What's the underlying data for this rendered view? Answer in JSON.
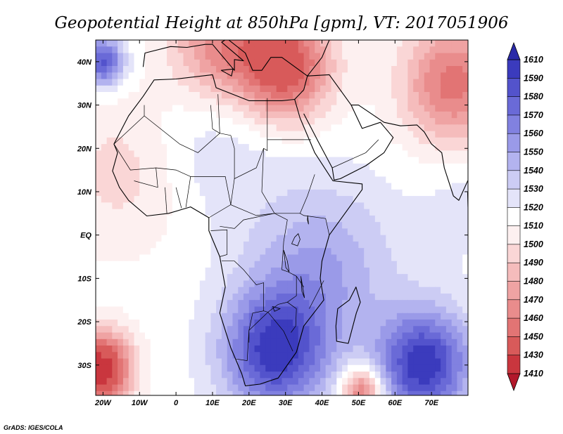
{
  "chart_data": {
    "type": "heatmap",
    "title": "Geopotential Height at 850hPa [gpm], VT: 2017051906",
    "x_axis": {
      "ticks": [
        -20,
        -10,
        0,
        10,
        20,
        30,
        40,
        50,
        60,
        70
      ],
      "tick_labels": [
        "20W",
        "10W",
        "0",
        "10E",
        "20E",
        "30E",
        "40E",
        "50E",
        "60E",
        "70E"
      ],
      "range": [
        -22,
        80
      ]
    },
    "y_axis": {
      "ticks": [
        40,
        30,
        20,
        10,
        0,
        -10,
        -20,
        -30
      ],
      "tick_labels": [
        "40N",
        "30N",
        "20N",
        "10N",
        "EQ",
        "10S",
        "20S",
        "30S"
      ],
      "range": [
        -37,
        45
      ]
    },
    "colorbar": {
      "levels": [
        1410,
        1430,
        1450,
        1460,
        1470,
        1480,
        1490,
        1500,
        1510,
        1520,
        1530,
        1540,
        1550,
        1560,
        1570,
        1580,
        1590,
        1610
      ],
      "colors": [
        "#b2182b",
        "#c9363e",
        "#d85a5a",
        "#e27474",
        "#e98c8c",
        "#efa3a3",
        "#f5bcbc",
        "#fad6d6",
        "#fdf0f0",
        "#ffffff",
        "#e4e4f9",
        "#ccccf4",
        "#b3b3ef",
        "#9a9ae8",
        "#8181e0",
        "#6a6ad7",
        "#5353cc",
        "#3b3bbd",
        "#2a2aa8"
      ]
    },
    "field_centers": [
      {
        "lon": 30,
        "lat": 39,
        "value": 1440,
        "spread": 9
      },
      {
        "lon": 76,
        "lat": 35,
        "value": 1455,
        "spread": 10
      },
      {
        "lon": 12,
        "lat": 44,
        "value": 1465,
        "spread": 10
      },
      {
        "lon": -21,
        "lat": -31,
        "value": 1415,
        "spread": 6
      },
      {
        "lon": -14,
        "lat": 15,
        "value": 1495,
        "spread": 13
      },
      {
        "lon": 51,
        "lat": -36,
        "value": 1448,
        "spread": 4
      },
      {
        "lon": -20,
        "lat": 40,
        "value": 1585,
        "spread": 4
      },
      {
        "lon": 27,
        "lat": -27,
        "value": 1592,
        "spread": 10
      },
      {
        "lon": 68,
        "lat": -30,
        "value": 1598,
        "spread": 9
      },
      {
        "lon": 40,
        "lat": -8,
        "value": 1550,
        "spread": 14
      },
      {
        "lon": 10,
        "lat": 22,
        "value": 1530,
        "spread": 13
      },
      {
        "lon": 80,
        "lat": 8,
        "value": 1525,
        "spread": 9
      }
    ],
    "field_base": 1515,
    "outline": {
      "africa": [
        [
          -17,
          21
        ],
        [
          -13,
          27.5
        ],
        [
          -9,
          32
        ],
        [
          -6,
          35.8
        ],
        [
          0,
          36
        ],
        [
          10,
          37
        ],
        [
          11,
          34
        ],
        [
          20,
          31
        ],
        [
          29,
          31
        ],
        [
          32.5,
          31.3
        ],
        [
          34,
          27
        ],
        [
          38,
          19
        ],
        [
          43,
          12.5
        ],
        [
          51,
          11.8
        ],
        [
          51,
          10.5
        ],
        [
          42,
          0
        ],
        [
          40,
          -6
        ],
        [
          39.5,
          -10
        ],
        [
          40.5,
          -15
        ],
        [
          35,
          -21
        ],
        [
          33,
          -27
        ],
        [
          28,
          -33
        ],
        [
          23,
          -34.4
        ],
        [
          19,
          -34.8
        ],
        [
          18,
          -32
        ],
        [
          15,
          -26
        ],
        [
          12,
          -18
        ],
        [
          13.5,
          -12
        ],
        [
          12,
          -5
        ],
        [
          9,
          1
        ],
        [
          9,
          4
        ],
        [
          4,
          6.5
        ],
        [
          -2,
          5
        ],
        [
          -8,
          4.4
        ],
        [
          -13,
          8
        ],
        [
          -15.5,
          11
        ],
        [
          -17.4,
          14.8
        ],
        [
          -16,
          19
        ]
      ],
      "madagascar": [
        [
          49.3,
          -12
        ],
        [
          50.5,
          -15.5
        ],
        [
          49.4,
          -18
        ],
        [
          47.2,
          -25
        ],
        [
          44,
          -24.5
        ],
        [
          43.8,
          -21
        ],
        [
          44.3,
          -17
        ],
        [
          47.5,
          -15
        ],
        [
          49.3,
          -12
        ]
      ],
      "arabia": [
        [
          32.5,
          31.3
        ],
        [
          35,
          33.5
        ],
        [
          36,
          36.7
        ],
        [
          42,
          37
        ],
        [
          48,
          30
        ],
        [
          51,
          24.6
        ],
        [
          56,
          26
        ],
        [
          59.5,
          22.5
        ],
        [
          57,
          19
        ],
        [
          52,
          16
        ],
        [
          45,
          13
        ],
        [
          43.3,
          12.7
        ],
        [
          42.8,
          15.5
        ],
        [
          39,
          21.5
        ],
        [
          35,
          28
        ]
      ],
      "europe": [
        [
          -9,
          38.8
        ],
        [
          -8.5,
          42
        ],
        [
          -1.5,
          43.5
        ],
        [
          3,
          43.3
        ],
        [
          8,
          44
        ],
        [
          10,
          44
        ],
        [
          12.5,
          41.5
        ],
        [
          16,
          38
        ],
        [
          16,
          40.5
        ],
        [
          18.5,
          40.2
        ],
        [
          12.5,
          44.5
        ],
        [
          14,
          45.3
        ],
        [
          19,
          42
        ],
        [
          21,
          38
        ],
        [
          23.5,
          38
        ],
        [
          26,
          41
        ],
        [
          29,
          41
        ],
        [
          36,
          36.7
        ],
        [
          40,
          41
        ],
        [
          42,
          45
        ]
      ],
      "iran": [
        [
          48,
          30
        ],
        [
          50,
          30
        ],
        [
          57,
          26
        ],
        [
          61.5,
          25.2
        ],
        [
          66,
          25.4
        ],
        [
          68,
          23.8
        ],
        [
          70,
          21
        ],
        [
          72.8,
          19
        ],
        [
          73.5,
          15.5
        ],
        [
          76,
          9
        ],
        [
          77.5,
          8
        ],
        [
          80.2,
          13
        ],
        [
          80,
          15.5
        ]
      ],
      "sicily": [
        [
          12.4,
          38
        ],
        [
          15.6,
          38.3
        ],
        [
          15.2,
          36.7
        ],
        [
          12.4,
          38
        ]
      ],
      "sri_lanka": [
        [
          79.9,
          9.8
        ],
        [
          81.8,
          7.5
        ],
        [
          81,
          6
        ],
        [
          80,
          6.5
        ],
        [
          79.9,
          9.8
        ]
      ],
      "borders": [
        [
          [
            -17,
            21
          ],
          [
            -8.7,
            27.5
          ],
          [
            -8.7,
            30
          ]
        ],
        [
          [
            -8.7,
            27.5
          ],
          [
            1,
            21
          ],
          [
            6,
            19
          ],
          [
            12,
            23.5
          ],
          [
            15,
            23
          ]
        ],
        [
          [
            9.5,
            30
          ],
          [
            10,
            24.5
          ],
          [
            12,
            23.5
          ],
          [
            11.5,
            32.5
          ]
        ],
        [
          [
            25,
            31.6
          ],
          [
            25,
            22
          ],
          [
            25,
            19.5
          ],
          [
            24,
            20
          ]
        ],
        [
          [
            25,
            22
          ],
          [
            37,
            22
          ]
        ],
        [
          [
            15,
            23
          ],
          [
            16,
            20
          ],
          [
            16,
            13
          ],
          [
            22,
            15.5
          ],
          [
            24,
            20
          ]
        ],
        [
          [
            24,
            20
          ],
          [
            23.5,
            10
          ],
          [
            27,
            5
          ],
          [
            34,
            5
          ],
          [
            36,
            9
          ],
          [
            38,
            14
          ]
        ],
        [
          [
            -17,
            21
          ],
          [
            -12.5,
            15
          ],
          [
            -5.5,
            15.5
          ],
          [
            -5,
            11
          ],
          [
            -11.5,
            12.5
          ]
        ],
        [
          [
            -5.5,
            15.5
          ],
          [
            0,
            15
          ],
          [
            4,
            13.5
          ],
          [
            13.5,
            13.5
          ],
          [
            15,
            7
          ],
          [
            16,
            13
          ]
        ],
        [
          [
            4,
            13.5
          ],
          [
            2.7,
            6.4
          ]
        ],
        [
          [
            -2.5,
            5
          ],
          [
            -3,
            11
          ]
        ],
        [
          [
            0,
            11
          ],
          [
            1.5,
            6.2
          ]
        ],
        [
          [
            9,
            4
          ],
          [
            15,
            7
          ],
          [
            22,
            4.5
          ],
          [
            27,
            5
          ]
        ],
        [
          [
            12,
            2
          ],
          [
            16,
            1.5
          ],
          [
            18.5,
            3.5
          ],
          [
            27,
            5
          ]
        ],
        [
          [
            9.5,
            1
          ],
          [
            14,
            1.2
          ],
          [
            14,
            -4.5
          ],
          [
            12,
            -5
          ]
        ],
        [
          [
            27,
            5
          ],
          [
            30.5,
            3.5
          ],
          [
            29.5,
            -1.5
          ],
          [
            29,
            -8
          ],
          [
            30.7,
            -8.5
          ],
          [
            33,
            -9.5
          ],
          [
            35,
            -12
          ]
        ],
        [
          [
            34,
            5
          ],
          [
            35,
            4.5
          ],
          [
            41,
            3.8
          ],
          [
            42,
            0
          ]
        ],
        [
          [
            12.5,
            -6
          ],
          [
            16,
            -6
          ],
          [
            18.5,
            -8
          ],
          [
            22,
            -11.5
          ],
          [
            24,
            -11
          ],
          [
            24,
            -17.5
          ],
          [
            21,
            -18
          ],
          [
            20,
            -22
          ],
          [
            19.5,
            -29
          ],
          [
            16.5,
            -28.6
          ]
        ],
        [
          [
            24,
            -17.5
          ],
          [
            25.2,
            -17.8
          ],
          [
            29.5,
            -22.2
          ],
          [
            32,
            -26.8
          ]
        ],
        [
          [
            20,
            -24.8
          ],
          [
            20,
            -22
          ],
          [
            25.2,
            -17.8
          ]
        ],
        [
          [
            25.2,
            -17.8
          ],
          [
            28,
            -16
          ],
          [
            30.5,
            -15.5
          ],
          [
            33,
            -17
          ],
          [
            32.8,
            -21
          ],
          [
            31.5,
            -22.5
          ]
        ],
        [
          [
            30.5,
            -15.5
          ],
          [
            33,
            -14
          ],
          [
            33,
            -9.5
          ]
        ],
        [
          [
            36.5,
            -17
          ],
          [
            40.5,
            -10.5
          ]
        ],
        [
          [
            42.8,
            15.5
          ],
          [
            52,
            19
          ],
          [
            55.5,
            22
          ]
        ]
      ],
      "lakes": [
        [
          [
            32.5,
            -0.5
          ],
          [
            33.5,
            0.3
          ],
          [
            34,
            -1
          ],
          [
            33.3,
            -2.5
          ],
          [
            31.7,
            -2
          ],
          [
            32.5,
            -0.5
          ]
        ],
        [
          [
            29.5,
            -3.5
          ],
          [
            30.5,
            -6
          ],
          [
            31,
            -8.5
          ],
          [
            30.1,
            -7.5
          ],
          [
            29.5,
            -3.5
          ]
        ],
        [
          [
            34.2,
            -9.5
          ],
          [
            34.7,
            -12
          ],
          [
            35.2,
            -14.5
          ],
          [
            34.5,
            -13
          ],
          [
            34.2,
            -9.5
          ]
        ],
        [
          [
            36,
            3.5
          ],
          [
            36.3,
            2.5
          ],
          [
            36.1,
            4.5
          ],
          [
            36,
            3.5
          ]
        ],
        [
          [
            26.5,
            -16.5
          ],
          [
            28.5,
            -17
          ],
          [
            27,
            -17.6
          ],
          [
            26.5,
            -16.5
          ]
        ]
      ]
    },
    "credit": "GrADS: IGES/COLA"
  }
}
